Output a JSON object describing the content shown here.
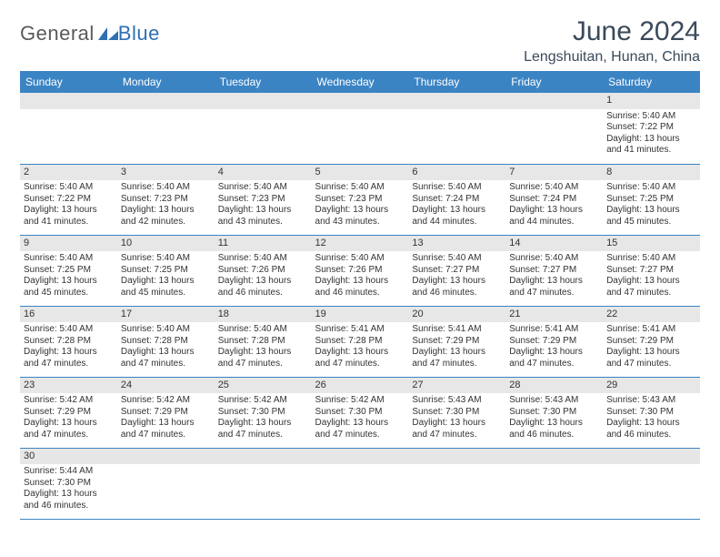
{
  "brand": {
    "part1": "General",
    "part2": "Blue"
  },
  "title": "June 2024",
  "location": "Lengshuitan, Hunan, China",
  "colors": {
    "header_bg": "#3b84c4",
    "header_text": "#ffffff",
    "daynum_bg": "#e7e7e7",
    "cell_border": "#3b84c4",
    "title_color": "#3a4a5a",
    "body_text": "#333333",
    "logo_gray": "#5a5a5a",
    "logo_blue": "#2e6fb3"
  },
  "typography": {
    "title_fontsize": 30,
    "location_fontsize": 16,
    "weekday_fontsize": 12,
    "daynum_fontsize": 11,
    "body_fontsize": 10
  },
  "weekdays": [
    "Sunday",
    "Monday",
    "Tuesday",
    "Wednesday",
    "Thursday",
    "Friday",
    "Saturday"
  ],
  "calendar": {
    "type": "table",
    "columns": 7,
    "start_weekday_index": 6,
    "days": [
      {
        "n": 1,
        "sunrise": "5:40 AM",
        "sunset": "7:22 PM",
        "daylight": "13 hours and 41 minutes."
      },
      {
        "n": 2,
        "sunrise": "5:40 AM",
        "sunset": "7:22 PM",
        "daylight": "13 hours and 41 minutes."
      },
      {
        "n": 3,
        "sunrise": "5:40 AM",
        "sunset": "7:23 PM",
        "daylight": "13 hours and 42 minutes."
      },
      {
        "n": 4,
        "sunrise": "5:40 AM",
        "sunset": "7:23 PM",
        "daylight": "13 hours and 43 minutes."
      },
      {
        "n": 5,
        "sunrise": "5:40 AM",
        "sunset": "7:23 PM",
        "daylight": "13 hours and 43 minutes."
      },
      {
        "n": 6,
        "sunrise": "5:40 AM",
        "sunset": "7:24 PM",
        "daylight": "13 hours and 44 minutes."
      },
      {
        "n": 7,
        "sunrise": "5:40 AM",
        "sunset": "7:24 PM",
        "daylight": "13 hours and 44 minutes."
      },
      {
        "n": 8,
        "sunrise": "5:40 AM",
        "sunset": "7:25 PM",
        "daylight": "13 hours and 45 minutes."
      },
      {
        "n": 9,
        "sunrise": "5:40 AM",
        "sunset": "7:25 PM",
        "daylight": "13 hours and 45 minutes."
      },
      {
        "n": 10,
        "sunrise": "5:40 AM",
        "sunset": "7:25 PM",
        "daylight": "13 hours and 45 minutes."
      },
      {
        "n": 11,
        "sunrise": "5:40 AM",
        "sunset": "7:26 PM",
        "daylight": "13 hours and 46 minutes."
      },
      {
        "n": 12,
        "sunrise": "5:40 AM",
        "sunset": "7:26 PM",
        "daylight": "13 hours and 46 minutes."
      },
      {
        "n": 13,
        "sunrise": "5:40 AM",
        "sunset": "7:27 PM",
        "daylight": "13 hours and 46 minutes."
      },
      {
        "n": 14,
        "sunrise": "5:40 AM",
        "sunset": "7:27 PM",
        "daylight": "13 hours and 47 minutes."
      },
      {
        "n": 15,
        "sunrise": "5:40 AM",
        "sunset": "7:27 PM",
        "daylight": "13 hours and 47 minutes."
      },
      {
        "n": 16,
        "sunrise": "5:40 AM",
        "sunset": "7:28 PM",
        "daylight": "13 hours and 47 minutes."
      },
      {
        "n": 17,
        "sunrise": "5:40 AM",
        "sunset": "7:28 PM",
        "daylight": "13 hours and 47 minutes."
      },
      {
        "n": 18,
        "sunrise": "5:40 AM",
        "sunset": "7:28 PM",
        "daylight": "13 hours and 47 minutes."
      },
      {
        "n": 19,
        "sunrise": "5:41 AM",
        "sunset": "7:28 PM",
        "daylight": "13 hours and 47 minutes."
      },
      {
        "n": 20,
        "sunrise": "5:41 AM",
        "sunset": "7:29 PM",
        "daylight": "13 hours and 47 minutes."
      },
      {
        "n": 21,
        "sunrise": "5:41 AM",
        "sunset": "7:29 PM",
        "daylight": "13 hours and 47 minutes."
      },
      {
        "n": 22,
        "sunrise": "5:41 AM",
        "sunset": "7:29 PM",
        "daylight": "13 hours and 47 minutes."
      },
      {
        "n": 23,
        "sunrise": "5:42 AM",
        "sunset": "7:29 PM",
        "daylight": "13 hours and 47 minutes."
      },
      {
        "n": 24,
        "sunrise": "5:42 AM",
        "sunset": "7:29 PM",
        "daylight": "13 hours and 47 minutes."
      },
      {
        "n": 25,
        "sunrise": "5:42 AM",
        "sunset": "7:30 PM",
        "daylight": "13 hours and 47 minutes."
      },
      {
        "n": 26,
        "sunrise": "5:42 AM",
        "sunset": "7:30 PM",
        "daylight": "13 hours and 47 minutes."
      },
      {
        "n": 27,
        "sunrise": "5:43 AM",
        "sunset": "7:30 PM",
        "daylight": "13 hours and 47 minutes."
      },
      {
        "n": 28,
        "sunrise": "5:43 AM",
        "sunset": "7:30 PM",
        "daylight": "13 hours and 46 minutes."
      },
      {
        "n": 29,
        "sunrise": "5:43 AM",
        "sunset": "7:30 PM",
        "daylight": "13 hours and 46 minutes."
      },
      {
        "n": 30,
        "sunrise": "5:44 AM",
        "sunset": "7:30 PM",
        "daylight": "13 hours and 46 minutes."
      }
    ]
  },
  "labels": {
    "sunrise_prefix": "Sunrise: ",
    "sunset_prefix": "Sunset: ",
    "daylight_prefix": "Daylight: "
  }
}
